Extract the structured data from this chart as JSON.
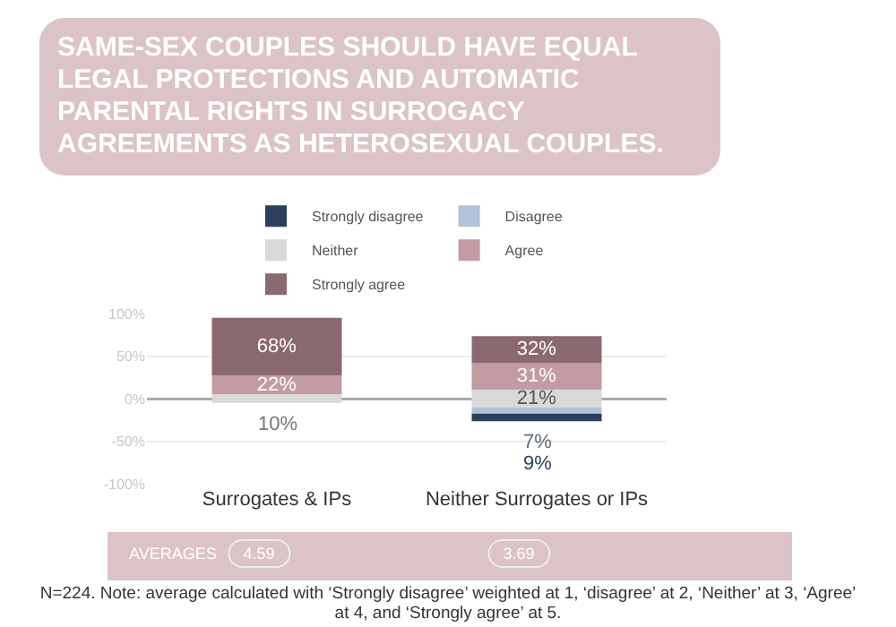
{
  "chart_data": {
    "type": "bar",
    "stacked": true,
    "title": "SAME-SEX COUPLES SHOULD HAVE EQUAL LEGAL PROTECTIONS AND AUTOMATIC PARENTAL RIGHTS IN SURROGACY AGREEMENTS AS HETEROSEXUAL COUPLES.",
    "categories": [
      "Surrogates & IPs",
      "Neither Surrogates or IPs"
    ],
    "series": [
      {
        "name": "Strongly disagree",
        "color": "#2e3f5e",
        "values": [
          null,
          9
        ],
        "base": [
          null,
          -26.5
        ],
        "value_labels": [
          null,
          "9%"
        ]
      },
      {
        "name": "Disagree",
        "color": "#b3c1d9",
        "values": [
          null,
          7
        ],
        "base": [
          null,
          -17.5
        ],
        "value_labels": [
          null,
          "7%"
        ]
      },
      {
        "name": "Neither",
        "color": "#d9d9d9",
        "values": [
          10,
          21
        ],
        "base": [
          -5,
          -10.5
        ],
        "value_labels": [
          "10%",
          "21%"
        ]
      },
      {
        "name": "Agree",
        "color": "#c29ba3",
        "values": [
          22,
          31
        ],
        "base": [
          5,
          10.5
        ],
        "value_labels": [
          "22%",
          "31%"
        ]
      },
      {
        "name": "Strongly agree",
        "color": "#8b6970",
        "values": [
          68,
          32
        ],
        "base": [
          27,
          41.5
        ],
        "value_labels": [
          "68%",
          "32%"
        ]
      }
    ],
    "ylim": [
      -100,
      100
    ],
    "yticks": [
      {
        "value": 100,
        "label": "100%"
      },
      {
        "value": 50,
        "label": "50%"
      },
      {
        "value": 0,
        "label": "0%"
      },
      {
        "value": -50,
        "label": "-50%"
      },
      {
        "value": -100,
        "label": "-100%"
      }
    ],
    "grid": "y",
    "legend": "top",
    "annotations": [
      "AVERAGES",
      "4.59",
      "3.69",
      "N=224. Note: average calculated with ‘Strongly disagree’ weighted at 1, ‘disagree’ at 2, ‘Neither’ at 3, ‘Agree’ at 4, and ‘Strongly agree’ at 5."
    ]
  }
}
